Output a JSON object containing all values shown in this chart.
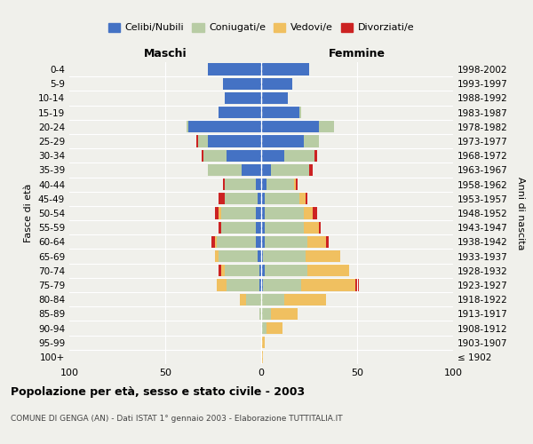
{
  "age_groups": [
    "100+",
    "95-99",
    "90-94",
    "85-89",
    "80-84",
    "75-79",
    "70-74",
    "65-69",
    "60-64",
    "55-59",
    "50-54",
    "45-49",
    "40-44",
    "35-39",
    "30-34",
    "25-29",
    "20-24",
    "15-19",
    "10-14",
    "5-9",
    "0-4"
  ],
  "birth_years": [
    "≤ 1902",
    "1903-1907",
    "1908-1912",
    "1913-1917",
    "1918-1922",
    "1923-1927",
    "1928-1932",
    "1933-1937",
    "1938-1942",
    "1943-1947",
    "1948-1952",
    "1953-1957",
    "1958-1962",
    "1963-1967",
    "1968-1972",
    "1973-1977",
    "1978-1982",
    "1983-1987",
    "1988-1992",
    "1993-1997",
    "1998-2002"
  ],
  "colors": {
    "celibi": "#4472c4",
    "coniugati": "#b8cca4",
    "vedovi": "#f0c060",
    "divorziati": "#cc2222"
  },
  "males": {
    "celibi": [
      0,
      0,
      0,
      0,
      0,
      1,
      1,
      2,
      3,
      3,
      3,
      2,
      3,
      10,
      18,
      28,
      38,
      22,
      19,
      20,
      28
    ],
    "coniugati": [
      0,
      0,
      0,
      1,
      8,
      17,
      18,
      20,
      20,
      18,
      18,
      17,
      16,
      18,
      12,
      5,
      1,
      0,
      0,
      0,
      0
    ],
    "vedovi": [
      0,
      0,
      0,
      0,
      3,
      5,
      2,
      2,
      1,
      0,
      1,
      0,
      0,
      0,
      0,
      0,
      0,
      0,
      0,
      0,
      0
    ],
    "divorziati": [
      0,
      0,
      0,
      0,
      0,
      0,
      1,
      0,
      2,
      1,
      2,
      3,
      1,
      0,
      1,
      1,
      0,
      0,
      0,
      0,
      0
    ]
  },
  "females": {
    "celibi": [
      0,
      0,
      0,
      0,
      0,
      1,
      2,
      1,
      2,
      2,
      2,
      2,
      3,
      5,
      12,
      22,
      30,
      20,
      14,
      16,
      25
    ],
    "coniugati": [
      0,
      0,
      3,
      5,
      12,
      20,
      22,
      22,
      22,
      20,
      20,
      18,
      14,
      20,
      16,
      8,
      8,
      1,
      0,
      0,
      0
    ],
    "vedovi": [
      1,
      2,
      8,
      14,
      22,
      28,
      22,
      18,
      10,
      8,
      5,
      3,
      1,
      0,
      0,
      0,
      0,
      0,
      0,
      0,
      0
    ],
    "divorziati": [
      0,
      0,
      0,
      0,
      0,
      2,
      0,
      0,
      1,
      1,
      2,
      1,
      1,
      2,
      1,
      0,
      0,
      0,
      0,
      0,
      0
    ]
  },
  "title": "Popolazione per età, sesso e stato civile - 2003",
  "subtitle": "COMUNE DI GENGA (AN) - Dati ISTAT 1° gennaio 2003 - Elaborazione TUTTITALIA.IT",
  "xlabel_left": "Maschi",
  "xlabel_right": "Femmine",
  "ylabel_left": "Fasce di età",
  "ylabel_right": "Anni di nascita",
  "xlim": 100,
  "bg_color": "#f0f0eb",
  "legend_labels": [
    "Celibi/Nubili",
    "Coniugati/e",
    "Vedovi/e",
    "Divorziati/e"
  ]
}
